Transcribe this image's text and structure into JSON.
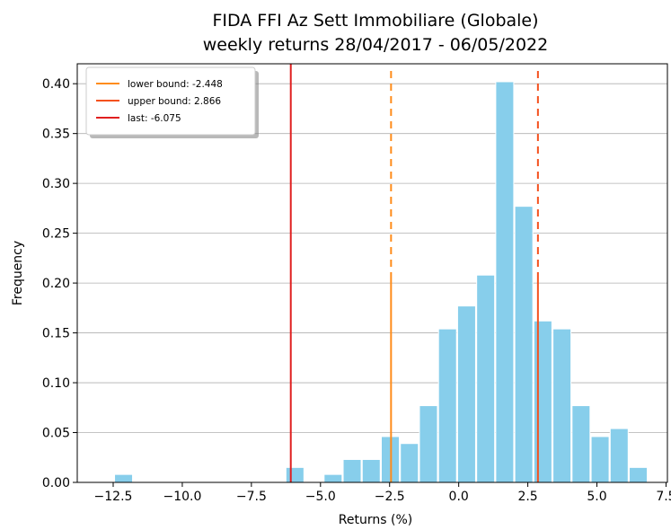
{
  "chart_data": {
    "type": "bar",
    "title": "FIDA FFI Az Sett Immobiliare (Globale)",
    "subtitle": "weekly returns 28/04/2017 - 06/05/2022",
    "xlabel": "Returns (%)",
    "ylabel": "Frequency",
    "xlim": [
      -13.8,
      7.55
    ],
    "ylim": [
      0.0,
      0.42
    ],
    "xticks": [
      -12.5,
      -10.0,
      -7.5,
      -5.0,
      -2.5,
      0.0,
      2.5,
      5.0,
      7.5
    ],
    "xtick_labels": [
      "−12.5",
      "−10.0",
      "−7.5",
      "−5.0",
      "−2.5",
      "0.0",
      "2.5",
      "5.0",
      "7.5"
    ],
    "yticks": [
      0.0,
      0.05,
      0.1,
      0.15,
      0.2,
      0.25,
      0.3,
      0.35,
      0.4
    ],
    "ytick_labels": [
      "0.00",
      "0.05",
      "0.10",
      "0.15",
      "0.20",
      "0.25",
      "0.30",
      "0.35",
      "0.40"
    ],
    "grid": "horizontal",
    "bar_color": "#87ceeb",
    "bin_width": 0.69,
    "bins": [
      {
        "x0": -12.45,
        "value": 0.008
      },
      {
        "x0": -6.245,
        "value": 0.015
      },
      {
        "x0": -5.555,
        "value": 0.0
      },
      {
        "x0": -4.865,
        "value": 0.008
      },
      {
        "x0": -3.865,
        "value": 0.023
      },
      {
        "x0": -3.175,
        "value": 0.023
      },
      {
        "x0": -2.73,
        "value": 0.046
      },
      {
        "x0": -2.04,
        "value": 0.039
      },
      {
        "x0": -1.35,
        "value": 0.077
      },
      {
        "x0": -0.66,
        "value": 0.154
      },
      {
        "x0": 0.03,
        "value": 0.177
      },
      {
        "x0": -0.32,
        "value": 0.0
      },
      {
        "x0": 0.72,
        "value": 0.208
      },
      {
        "x0": 1.41,
        "value": 0.402
      },
      {
        "x0": 2.1,
        "value": 0.277
      },
      {
        "x0": 2.79,
        "value": 0.162
      },
      {
        "x0": 3.48,
        "value": 0.154
      },
      {
        "x0": 4.17,
        "value": 0.077
      },
      {
        "x0": 4.86,
        "value": 0.046
      },
      {
        "x0": 5.55,
        "value": 0.054
      },
      {
        "x0": 6.24,
        "value": 0.015
      }
    ],
    "bars": [
      {
        "x0": -12.45,
        "x1": -11.8,
        "value": 0.008
      },
      {
        "x0": -6.25,
        "x1": -5.6,
        "value": 0.015
      },
      {
        "x0": -4.87,
        "x1": -4.22,
        "value": 0.008
      },
      {
        "x0": -4.18,
        "x1": -3.53,
        "value": 0.023
      },
      {
        "x0": -3.49,
        "x1": -2.84,
        "value": 0.023
      },
      {
        "x0": -2.8,
        "x1": -2.15,
        "value": 0.046
      },
      {
        "x0": -2.11,
        "x1": -1.46,
        "value": 0.039
      },
      {
        "x0": -1.42,
        "x1": -0.77,
        "value": 0.077
      },
      {
        "x0": -0.73,
        "x1": -0.08,
        "value": 0.154
      },
      {
        "x0": -0.04,
        "x1": 0.61,
        "value": 0.177
      },
      {
        "x0": 0.65,
        "x1": 1.3,
        "value": 0.208
      },
      {
        "x0": 1.34,
        "x1": 1.99,
        "value": 0.402
      },
      {
        "x0": 2.03,
        "x1": 2.68,
        "value": 0.277
      },
      {
        "x0": 2.72,
        "x1": 3.37,
        "value": 0.162
      },
      {
        "x0": 3.41,
        "x1": 4.06,
        "value": 0.154
      },
      {
        "x0": 4.1,
        "x1": 4.75,
        "value": 0.077
      },
      {
        "x0": 4.79,
        "x1": 5.44,
        "value": 0.046
      },
      {
        "x0": 5.48,
        "x1": 6.13,
        "value": 0.054
      },
      {
        "x0": 6.17,
        "x1": 6.82,
        "value": 0.015
      },
      {
        "x0": 6.86,
        "x1": 7.51,
        "value": 0.0
      }
    ],
    "vlines": [
      {
        "name": "lower bound: -2.448",
        "x": -2.448,
        "color": "#ff8c1a",
        "style": "dashed-top"
      },
      {
        "name": "upper bound: 2.866",
        "x": 2.866,
        "color": "#f4511e",
        "style": "dashed-top"
      },
      {
        "name": "last: -6.075",
        "x": -6.075,
        "color": "#e02020",
        "style": "solid"
      }
    ],
    "legend": {
      "position": "top-left",
      "entries": [
        {
          "label": "lower bound: -2.448",
          "color": "#ff8c1a"
        },
        {
          "label": "upper bound: 2.866",
          "color": "#f4511e"
        },
        {
          "label": "last: -6.075",
          "color": "#e02020"
        }
      ]
    }
  }
}
